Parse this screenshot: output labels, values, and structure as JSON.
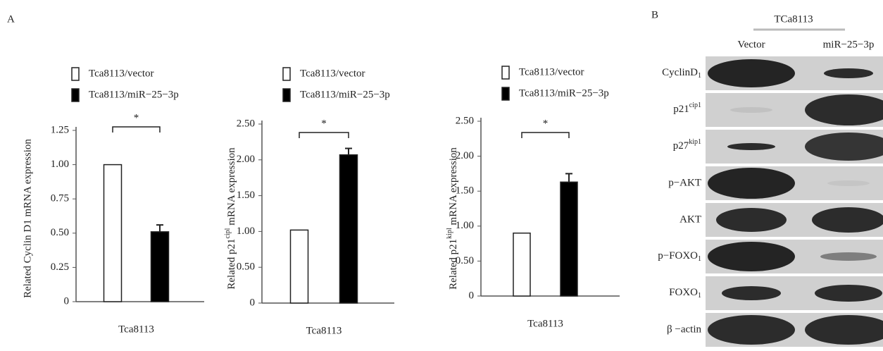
{
  "panels": {
    "a": "A",
    "b": "B"
  },
  "chart_data": [
    {
      "type": "bar",
      "ylabel": "Related Cyclin D1 mRNA expression",
      "categories": [
        "Tca8113"
      ],
      "series": [
        {
          "name": "Tca8113/vector",
          "color": "#ffffff",
          "values": [
            1.0
          ]
        },
        {
          "name": "Tca8113/miR−25−3p",
          "color": "#000000",
          "values": [
            0.51
          ],
          "errors": [
            0.05
          ]
        }
      ],
      "ylim": [
        0,
        1.25
      ],
      "yticks": [
        0,
        0.25,
        {
          "value": 0.5,
          "label": "0.50"
        },
        0.75,
        {
          "value": 1,
          "label": "1.00"
        },
        1.25
      ],
      "annotation": "*"
    },
    {
      "type": "bar",
      "ylabel": {
        "text": "Related p21",
        "sup": "cipl",
        "rest": " mRNA expression"
      },
      "categories": [
        "Tca8113"
      ],
      "series": [
        {
          "name": "Tca8113/vector",
          "color": "#ffffff",
          "values": [
            1.02
          ]
        },
        {
          "name": "Tca8113/miR−25−3p",
          "color": "#000000",
          "values": [
            2.07
          ],
          "errors": [
            0.09
          ]
        }
      ],
      "ylim": [
        0,
        2.5
      ],
      "yticks": [
        0,
        {
          "value": 0.5,
          "label": "0.50"
        },
        {
          "value": 1,
          "label": "1.00"
        },
        {
          "value": 1.5,
          "label": "1.50"
        },
        {
          "value": 2,
          "label": "2.00"
        },
        {
          "value": 2.5,
          "label": "2.50"
        }
      ],
      "annotation": "*"
    },
    {
      "type": "bar",
      "ylabel": {
        "text": "Related p21",
        "sup": "kipl",
        "rest": " mRNA expression"
      },
      "categories": [
        "Tca8113"
      ],
      "series": [
        {
          "name": "Tca8113/vector",
          "color": "#ffffff",
          "values": [
            0.9
          ]
        },
        {
          "name": "Tca8113/miR−25−3p",
          "color": "#000000",
          "values": [
            1.63
          ],
          "errors": [
            0.12
          ]
        }
      ],
      "ylim": [
        0,
        2.5
      ],
      "yticks": [
        0,
        {
          "value": 0.5,
          "label": "0.50"
        },
        {
          "value": 1,
          "label": "1.00"
        },
        {
          "value": 1.5,
          "label": "1.50"
        },
        {
          "value": 2,
          "label": "2.00"
        },
        {
          "value": 2.5,
          "label": "2.50"
        }
      ],
      "annotation": "*"
    }
  ],
  "blot": {
    "group_label": "TCa8113",
    "lanes": [
      "Vector",
      "miR−25−3p"
    ],
    "rows": [
      {
        "text": "CyclinD",
        "sub": "1"
      },
      {
        "text": "p21",
        "sup": "cip1"
      },
      {
        "text": "p27",
        "sup": "kip1"
      },
      "p−AKT",
      "AKT",
      {
        "text": "p−FOXO",
        "sub": "1"
      },
      {
        "text": "FOXO",
        "sub": "1"
      },
      "β −actin"
    ]
  }
}
